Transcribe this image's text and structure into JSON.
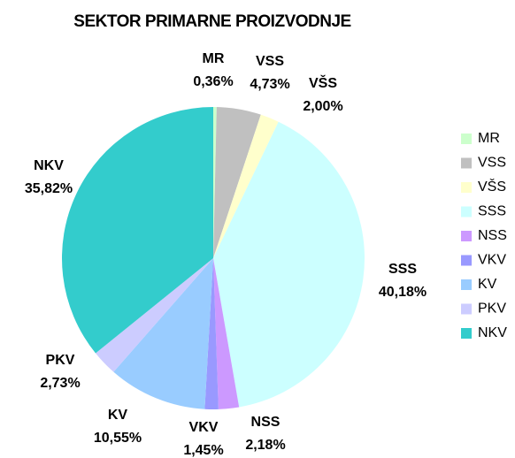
{
  "chart_data": {
    "type": "pie",
    "title": "SEKTOR PRIMARNE PROIZVODNJE",
    "categories": [
      "MR",
      "VSS",
      "VŠS",
      "SSS",
      "NSS",
      "VKV",
      "KV",
      "PKV",
      "NKV"
    ],
    "values": [
      0.36,
      4.73,
      2.0,
      40.18,
      2.18,
      1.45,
      10.55,
      2.73,
      35.82
    ],
    "value_labels": [
      "0,36%",
      "4,73%",
      "2,00%",
      "40,18%",
      "2,18%",
      "1,45%",
      "10,55%",
      "2,73%",
      "35,82%"
    ],
    "colors": [
      "#ccffcc",
      "#c0c0c0",
      "#ffffcc",
      "#ccffff",
      "#cc99ff",
      "#9999ff",
      "#99ccff",
      "#ccccff",
      "#33cccc"
    ],
    "legend": "right"
  }
}
